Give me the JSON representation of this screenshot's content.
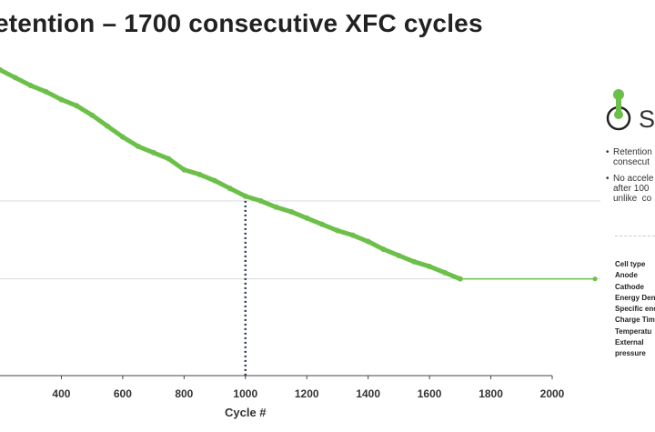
{
  "title": "etention – 1700  consecutive XFC cycles",
  "chart_data": {
    "type": "line",
    "xlabel": "Cycle #",
    "x_ticks": [
      "400",
      "600",
      "800",
      "1000",
      "1200",
      "1400",
      "1600",
      "1800",
      "2000"
    ],
    "xlim": [
      200,
      2000
    ],
    "series": [
      {
        "x": [
          200,
          250,
          300,
          350,
          400,
          450,
          500,
          550,
          600,
          650,
          700,
          750,
          800,
          850,
          900,
          950,
          1000,
          1050,
          1100,
          1150,
          1200,
          1250,
          1300,
          1350,
          1400,
          1450,
          1500,
          1550,
          1600,
          1650,
          1700
        ],
        "y": [
          0.98,
          0.955,
          0.93,
          0.91,
          0.885,
          0.865,
          0.835,
          0.8,
          0.765,
          0.735,
          0.715,
          0.695,
          0.66,
          0.645,
          0.625,
          0.6,
          0.575,
          0.56,
          0.54,
          0.525,
          0.505,
          0.485,
          0.465,
          0.45,
          0.43,
          0.405,
          0.385,
          0.365,
          0.35,
          0.33,
          0.31
        ]
      }
    ],
    "reference_lines": [
      1000
    ],
    "grid": true,
    "colors": {
      "series": "#6cc04a",
      "reference": "#2f3f57",
      "axis": "#444444",
      "grid": "#d4d4d4"
    }
  },
  "sidebar": {
    "logo_text": "St",
    "bullets": [
      "Retention\nconsecut",
      "No accele\nafter 100\nunlike  co"
    ],
    "specs": [
      "Cell type",
      "Anode",
      "Cathode",
      "Energy Den",
      "Specific ene",
      "Charge Tim",
      "Temperatu",
      "External\npressure"
    ]
  }
}
